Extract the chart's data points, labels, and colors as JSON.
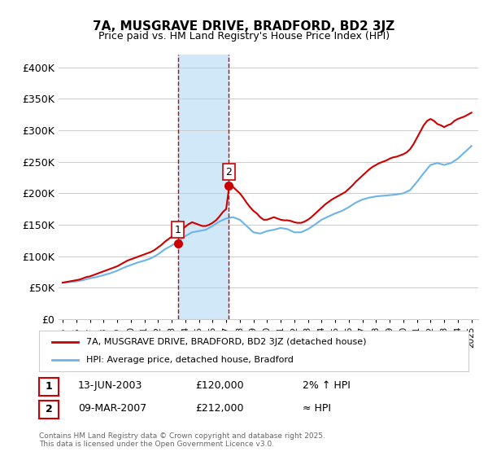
{
  "title": "7A, MUSGRAVE DRIVE, BRADFORD, BD2 3JZ",
  "subtitle": "Price paid vs. HM Land Registry's House Price Index (HPI)",
  "ylabel_ticks": [
    "£0",
    "£50K",
    "£100K",
    "£150K",
    "£200K",
    "£250K",
    "£300K",
    "£350K",
    "£400K"
  ],
  "ytick_values": [
    0,
    50000,
    100000,
    150000,
    200000,
    250000,
    300000,
    350000,
    400000
  ],
  "ylim": [
    0,
    420000
  ],
  "xlim_start": 1995,
  "xlim_end": 2025.5,
  "xticks": [
    1995,
    1996,
    1997,
    1998,
    1999,
    2000,
    2001,
    2002,
    2003,
    2004,
    2005,
    2006,
    2007,
    2008,
    2009,
    2010,
    2011,
    2012,
    2013,
    2014,
    2015,
    2016,
    2017,
    2018,
    2019,
    2020,
    2021,
    2022,
    2023,
    2024,
    2025
  ],
  "hpi_line_color": "#6cb4e8",
  "price_line_color": "#cc0000",
  "shade_color": "#d0e8f8",
  "marker1_date": 2003.45,
  "marker2_date": 2007.19,
  "marker1_price": 120000,
  "marker2_price": 212000,
  "vline_color": "#cc0000",
  "legend_label1": "7A, MUSGRAVE DRIVE, BRADFORD, BD2 3JZ (detached house)",
  "legend_label2": "HPI: Average price, detached house, Bradford",
  "table_row1": [
    "1",
    "13-JUN-2003",
    "£120,000",
    "2% ↑ HPI"
  ],
  "table_row2": [
    "2",
    "09-MAR-2007",
    "£212,000",
    "≈ HPI"
  ],
  "footnote": "Contains HM Land Registry data © Crown copyright and database right 2025.\nThis data is licensed under the Open Government Licence v3.0.",
  "background_color": "#ffffff",
  "hpi_data_x": [
    1995.0,
    1995.5,
    1996.0,
    1996.5,
    1997.0,
    1997.5,
    1998.0,
    1998.5,
    1999.0,
    1999.5,
    2000.0,
    2000.5,
    2001.0,
    2001.5,
    2002.0,
    2002.5,
    2003.0,
    2003.5,
    2004.0,
    2004.5,
    2005.0,
    2005.5,
    2006.0,
    2006.5,
    2007.0,
    2007.5,
    2008.0,
    2008.5,
    2009.0,
    2009.5,
    2010.0,
    2010.5,
    2011.0,
    2011.5,
    2012.0,
    2012.5,
    2013.0,
    2013.5,
    2014.0,
    2014.5,
    2015.0,
    2015.5,
    2016.0,
    2016.5,
    2017.0,
    2017.5,
    2018.0,
    2018.5,
    2019.0,
    2019.5,
    2020.0,
    2020.5,
    2021.0,
    2021.5,
    2022.0,
    2022.5,
    2023.0,
    2023.5,
    2024.0,
    2024.5,
    2025.0
  ],
  "hpi_data_y": [
    58000,
    59000,
    60000,
    62000,
    65000,
    67000,
    70000,
    73000,
    77000,
    82000,
    86000,
    90000,
    93000,
    97000,
    103000,
    111000,
    117000,
    124000,
    132000,
    138000,
    140000,
    142000,
    148000,
    155000,
    160000,
    162000,
    158000,
    148000,
    138000,
    136000,
    140000,
    142000,
    145000,
    143000,
    138000,
    138000,
    143000,
    150000,
    158000,
    163000,
    168000,
    172000,
    178000,
    185000,
    190000,
    193000,
    195000,
    196000,
    197000,
    198000,
    200000,
    205000,
    218000,
    232000,
    245000,
    248000,
    245000,
    248000,
    255000,
    265000,
    275000
  ],
  "price_data_x": [
    1995.0,
    1995.25,
    1995.5,
    1995.75,
    1996.0,
    1996.25,
    1996.5,
    1996.75,
    1997.0,
    1997.25,
    1997.5,
    1997.75,
    1998.0,
    1998.25,
    1998.5,
    1998.75,
    1999.0,
    1999.25,
    1999.5,
    1999.75,
    2000.0,
    2000.25,
    2000.5,
    2000.75,
    2001.0,
    2001.25,
    2001.5,
    2001.75,
    2002.0,
    2002.25,
    2002.5,
    2002.75,
    2003.0,
    2003.25,
    2003.5,
    2003.75,
    2004.0,
    2004.25,
    2004.5,
    2004.75,
    2005.0,
    2005.25,
    2005.5,
    2005.75,
    2006.0,
    2006.25,
    2006.5,
    2006.75,
    2007.0,
    2007.25,
    2007.5,
    2007.75,
    2008.0,
    2008.25,
    2008.5,
    2008.75,
    2009.0,
    2009.25,
    2009.5,
    2009.75,
    2010.0,
    2010.25,
    2010.5,
    2010.75,
    2011.0,
    2011.25,
    2011.5,
    2011.75,
    2012.0,
    2012.25,
    2012.5,
    2012.75,
    2013.0,
    2013.25,
    2013.5,
    2013.75,
    2014.0,
    2014.25,
    2014.5,
    2014.75,
    2015.0,
    2015.25,
    2015.5,
    2015.75,
    2016.0,
    2016.25,
    2016.5,
    2016.75,
    2017.0,
    2017.25,
    2017.5,
    2017.75,
    2018.0,
    2018.25,
    2018.5,
    2018.75,
    2019.0,
    2019.25,
    2019.5,
    2019.75,
    2020.0,
    2020.25,
    2020.5,
    2020.75,
    2021.0,
    2021.25,
    2021.5,
    2021.75,
    2022.0,
    2022.25,
    2022.5,
    2022.75,
    2023.0,
    2023.25,
    2023.5,
    2023.75,
    2024.0,
    2024.25,
    2024.5,
    2024.75,
    2025.0
  ],
  "price_data_y": [
    58000,
    59000,
    60000,
    61000,
    62000,
    63000,
    65000,
    67000,
    68000,
    70000,
    72000,
    74000,
    76000,
    78000,
    80000,
    82000,
    84000,
    87000,
    90000,
    93000,
    95000,
    97000,
    99000,
    101000,
    103000,
    105000,
    107000,
    110000,
    114000,
    118000,
    123000,
    127000,
    131000,
    135000,
    138000,
    142000,
    147000,
    151000,
    154000,
    152000,
    150000,
    148000,
    148000,
    150000,
    153000,
    157000,
    163000,
    170000,
    175000,
    215000,
    210000,
    205000,
    200000,
    193000,
    185000,
    178000,
    172000,
    168000,
    162000,
    158000,
    158000,
    160000,
    162000,
    160000,
    158000,
    157000,
    157000,
    156000,
    154000,
    153000,
    153000,
    155000,
    158000,
    162000,
    167000,
    172000,
    177000,
    182000,
    186000,
    190000,
    193000,
    196000,
    199000,
    202000,
    207000,
    212000,
    218000,
    223000,
    228000,
    233000,
    238000,
    242000,
    245000,
    248000,
    250000,
    252000,
    255000,
    257000,
    258000,
    260000,
    262000,
    265000,
    270000,
    278000,
    288000,
    298000,
    308000,
    315000,
    318000,
    315000,
    310000,
    308000,
    305000,
    308000,
    310000,
    315000,
    318000,
    320000,
    322000,
    325000,
    328000
  ]
}
